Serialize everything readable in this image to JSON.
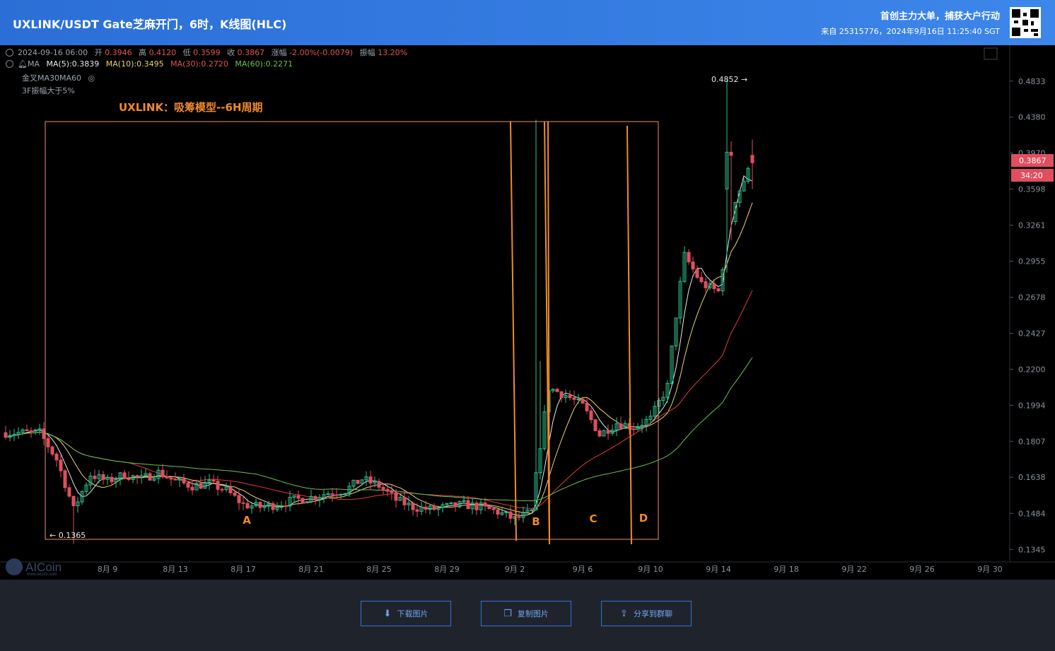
{
  "header": {
    "title": "UXLINK/USDT Gate芝麻开门，6时，K线图(HLC)",
    "slogan": "首创主力大单，捕获大户行动",
    "source": "来自 25315776，2024年9月16日 11:25:40 SGT"
  },
  "info": {
    "datetime": "2024-09-16 06:00",
    "open_label": "开",
    "open": "0.3946",
    "high_label": "高",
    "high": "0.4120",
    "low_label": "低",
    "low": "0.3599",
    "close_label": "收",
    "close": "0.3867",
    "change_label": "涨幅",
    "change": "-2.00%(-0.0079)",
    "amp_label": "振幅",
    "amp": "13.20%",
    "ma_label": "MA",
    "ma5": "MA(5):0.3839",
    "ma10": "MA(10):0.3495",
    "ma30": "MA(30):0.2720",
    "ma60": "MA(60):0.2271",
    "signal1": "金叉MA30MA60",
    "signal2": "3F振幅大于5%"
  },
  "logo": {
    "text": "AICoin",
    "sub": "www.aicoin.com"
  },
  "buttons": {
    "download": "下载图片",
    "copy": "复制图片",
    "share": "分享到群聊"
  },
  "chart_data": {
    "type": "candlestick",
    "title": "UXLINK：吸筹模型--6H周期",
    "y_ticks": [
      "0.4833",
      "0.4380",
      "0.3970",
      "0.3598",
      "0.3261",
      "0.2955",
      "0.2678",
      "0.2427",
      "0.2200",
      "0.1994",
      "0.1807",
      "0.1638",
      "0.1484",
      "0.1345"
    ],
    "y_scale": "log",
    "y_range": [
      0.132,
      0.505
    ],
    "x_ticks": [
      "8月 9",
      "8月 13",
      "8月 17",
      "8月 21",
      "8月 25",
      "8月 29",
      "9月 2",
      "9月 6",
      "9月 10",
      "9月 14",
      "9月 18",
      "9月 22",
      "9月 26",
      "9月 30"
    ],
    "high_marker": "0.4852 →",
    "low_marker": "← 0.1365",
    "current_price": "0.3867",
    "countdown": "34:20",
    "phase_labels": [
      "A",
      "B",
      "C",
      "D"
    ],
    "close_path": [
      [
        "8月 5",
        0.185
      ],
      [
        "8月 6",
        0.172
      ],
      [
        "8月 7",
        0.15
      ],
      [
        "8月 8",
        0.165
      ],
      [
        "8月 9",
        0.162
      ],
      [
        "8月 10",
        0.165
      ],
      [
        "8月 11",
        0.163
      ],
      [
        "8月 12",
        0.166
      ],
      [
        "8月 13",
        0.162
      ],
      [
        "8月 14",
        0.16
      ],
      [
        "8月 15",
        0.161
      ],
      [
        "8月 16",
        0.158
      ],
      [
        "8月 17",
        0.152
      ],
      [
        "8月 18",
        0.151
      ],
      [
        "8月 19",
        0.152
      ],
      [
        "8月 20",
        0.154
      ],
      [
        "8月 21",
        0.155
      ],
      [
        "8月 22",
        0.157
      ],
      [
        "8月 23",
        0.158
      ],
      [
        "8月 24",
        0.163
      ],
      [
        "8月 25",
        0.16
      ],
      [
        "8月 26",
        0.154
      ],
      [
        "8月 27",
        0.151
      ],
      [
        "8月 28",
        0.15
      ],
      [
        "8月 29",
        0.151
      ],
      [
        "8月 30",
        0.152
      ],
      [
        "8月 31",
        0.151
      ],
      [
        "9月 1",
        0.149
      ],
      [
        "9月 2",
        0.146
      ],
      [
        "9月 3",
        0.149
      ],
      [
        "9月 4",
        0.209
      ],
      [
        "9月 5",
        0.205
      ],
      [
        "9月 6",
        0.199
      ],
      [
        "9月 7",
        0.184
      ],
      [
        "9月 8",
        0.19
      ],
      [
        "9月 9",
        0.188
      ],
      [
        "9月 10",
        0.192
      ],
      [
        "9月 11",
        0.21
      ],
      [
        "9月 12",
        0.3
      ],
      [
        "9月 13",
        0.278
      ],
      [
        "9月 14",
        0.272
      ],
      [
        "9月 15",
        0.35
      ],
      [
        "9月 16",
        0.3867
      ]
    ],
    "series": [
      {
        "name": "MA(5)",
        "color": "#e8e8e8"
      },
      {
        "name": "MA(10)",
        "color": "#e9d46a"
      },
      {
        "name": "MA(30)",
        "color": "#e03c3c"
      },
      {
        "name": "MA(60)",
        "color": "#6dc24a"
      }
    ],
    "colors": {
      "up": "#2fbf8f",
      "down": "#e04f5f",
      "annotation": "#f08a2a"
    }
  }
}
